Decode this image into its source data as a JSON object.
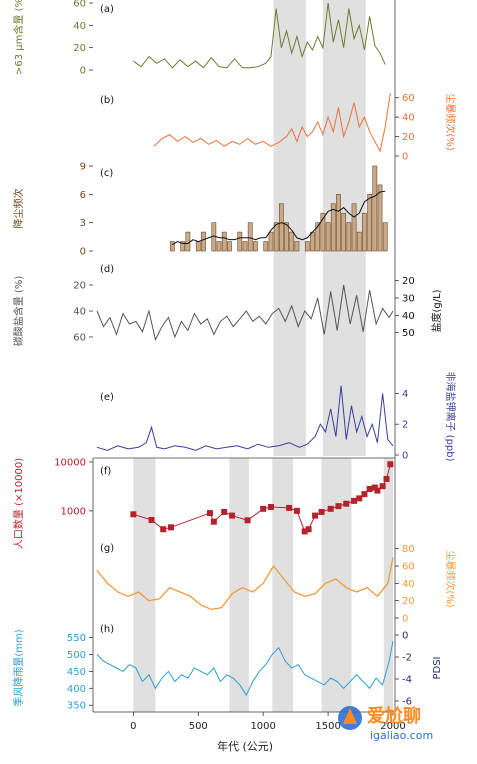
{
  "xaxis": {
    "label": "年代 (公元)",
    "ticks": [
      0,
      500,
      1000,
      1500,
      2000
    ],
    "range": [
      -280,
      2000
    ]
  },
  "watermark": {
    "text": "爱尬聊",
    "url": "igaliao.com"
  },
  "colors": {
    "a": "#6b7d2e",
    "b": "#e8743b",
    "c": "#6b4a1e",
    "d": "#555555",
    "e": "#3a3f9a",
    "f": "#b5222b",
    "g": "#f29a3a",
    "h": "#2a9fd0",
    "pdsi": "#1f2f6e"
  },
  "chart_data": [
    {
      "id": "a",
      "panel_label": "(a)",
      "type": "line",
      "ylabel": ">63 μm含量 (%",
      "ylabel_side": "left",
      "color": "#6b7d2e",
      "ylim": [
        0,
        60
      ],
      "ticks": [
        0,
        20,
        40,
        60
      ],
      "x": [
        0,
        60,
        120,
        180,
        240,
        300,
        360,
        420,
        480,
        540,
        600,
        660,
        720,
        780,
        840,
        900,
        960,
        1020,
        1060,
        1100,
        1140,
        1180,
        1220,
        1260,
        1300,
        1340,
        1380,
        1420,
        1460,
        1500,
        1540,
        1580,
        1620,
        1660,
        1700,
        1740,
        1780,
        1820,
        1860,
        1900,
        1940
      ],
      "y": [
        8,
        3,
        12,
        6,
        10,
        2,
        9,
        3,
        8,
        2,
        11,
        3,
        2,
        10,
        2,
        2,
        3,
        6,
        12,
        55,
        20,
        35,
        15,
        30,
        12,
        25,
        18,
        30,
        20,
        60,
        25,
        45,
        20,
        55,
        28,
        40,
        18,
        48,
        22,
        15,
        5
      ]
    },
    {
      "id": "b",
      "panel_label": "(b)",
      "type": "line",
      "ylabel": "尘暴频次(%)",
      "ylabel_side": "right",
      "color": "#e8743b",
      "ylim": [
        0,
        70
      ],
      "ticks": [
        0,
        20,
        40,
        60
      ],
      "x": [
        160,
        220,
        280,
        340,
        400,
        460,
        520,
        580,
        640,
        700,
        760,
        820,
        880,
        940,
        1000,
        1060,
        1120,
        1180,
        1220,
        1260,
        1300,
        1340,
        1380,
        1420,
        1460,
        1500,
        1540,
        1580,
        1620,
        1660,
        1700,
        1740,
        1780,
        1820,
        1860,
        1900,
        1940,
        1980
      ],
      "y": [
        10,
        18,
        22,
        15,
        20,
        14,
        18,
        12,
        16,
        10,
        15,
        12,
        18,
        12,
        15,
        10,
        14,
        20,
        28,
        15,
        30,
        20,
        25,
        35,
        22,
        40,
        25,
        50,
        20,
        35,
        55,
        30,
        40,
        25,
        15,
        5,
        30,
        65
      ]
    },
    {
      "id": "c",
      "panel_label": "(c)",
      "type": "bar+line",
      "ylabel": "降尘频次",
      "ylabel_side": "left",
      "color": "#6b4a1e",
      "ylim": [
        0,
        9
      ],
      "ticks": [
        0,
        3,
        6,
        9
      ],
      "x": [
        300,
        340,
        380,
        420,
        460,
        500,
        540,
        580,
        620,
        660,
        700,
        740,
        780,
        820,
        860,
        900,
        940,
        980,
        1020,
        1060,
        1100,
        1140,
        1180,
        1220,
        1260,
        1300,
        1340,
        1380,
        1420,
        1460,
        1500,
        1540,
        1580,
        1620,
        1660,
        1700,
        1740,
        1780,
        1820,
        1860,
        1900,
        1940
      ],
      "y": [
        1,
        0,
        1,
        2,
        0,
        1,
        2,
        0,
        3,
        1,
        2,
        1,
        0,
        2,
        1,
        3,
        1,
        0,
        1,
        2,
        3,
        5,
        3,
        2,
        1,
        0,
        1,
        2,
        3,
        4,
        3,
        5,
        6,
        4,
        3,
        5,
        2,
        4,
        6,
        9,
        7,
        3
      ]
    },
    {
      "id": "d",
      "panel_label": "(d)",
      "type": "line",
      "ylabel": "碳酸盐含量 (%)",
      "ylabel_side": "left",
      "color": "#555555",
      "ylim": [
        70,
        10
      ],
      "ticks": [
        20,
        40,
        60
      ],
      "right_axis": {
        "label": "盐度(g/L)",
        "ticks": [
          20,
          30,
          40,
          50
        ],
        "ylim": [
          60,
          15
        ],
        "color": "#111111"
      },
      "x": [
        -280,
        -230,
        -180,
        -130,
        -80,
        -30,
        20,
        70,
        120,
        170,
        220,
        270,
        320,
        370,
        420,
        470,
        520,
        570,
        620,
        670,
        720,
        770,
        820,
        870,
        920,
        970,
        1020,
        1070,
        1120,
        1170,
        1220,
        1270,
        1320,
        1370,
        1420,
        1470,
        1520,
        1570,
        1620,
        1670,
        1720,
        1770,
        1820,
        1870,
        1920,
        1970,
        2000
      ],
      "y": [
        40,
        52,
        45,
        58,
        42,
        50,
        48,
        56,
        40,
        62,
        52,
        45,
        60,
        48,
        55,
        42,
        50,
        46,
        58,
        48,
        44,
        52,
        46,
        40,
        48,
        44,
        50,
        42,
        38,
        48,
        36,
        52,
        40,
        46,
        30,
        58,
        25,
        55,
        20,
        50,
        28,
        56,
        24,
        50,
        38,
        45,
        40
      ]
    },
    {
      "id": "e",
      "panel_label": "(e)",
      "type": "line",
      "ylabel": "非海盐钾离子 (ppb)",
      "ylabel_side": "right",
      "color": "#3a3f9a",
      "ylim": [
        0,
        5
      ],
      "ticks": [
        0,
        2,
        4
      ],
      "x": [
        -280,
        -200,
        -120,
        -40,
        40,
        100,
        140,
        180,
        240,
        320,
        400,
        480,
        560,
        640,
        720,
        800,
        880,
        960,
        1040,
        1120,
        1200,
        1280,
        1340,
        1400,
        1440,
        1480,
        1520,
        1560,
        1600,
        1640,
        1680,
        1720,
        1760,
        1800,
        1840,
        1880,
        1920,
        1960,
        2000
      ],
      "y": [
        0.5,
        0.3,
        0.6,
        0.4,
        0.5,
        0.8,
        1.8,
        0.5,
        0.4,
        0.6,
        0.5,
        0.3,
        0.6,
        0.4,
        0.5,
        0.6,
        0.4,
        0.7,
        0.5,
        0.6,
        0.8,
        0.5,
        0.7,
        1.2,
        2.0,
        1.5,
        3.0,
        1.2,
        4.5,
        1.0,
        3.2,
        1.5,
        2.5,
        1.2,
        2.0,
        0.8,
        4.0,
        1.0,
        0.6
      ]
    },
    {
      "id": "f",
      "panel_label": "(f)",
      "type": "scatter+line",
      "ylabel": "人口数量 (×10000)",
      "ylabel_side": "left",
      "color": "#b5222b",
      "scale": "log",
      "ylim": [
        200,
        10000
      ],
      "ticks": [
        1000,
        10000
      ],
      "x": [
        0,
        140,
        230,
        290,
        590,
        620,
        700,
        760,
        880,
        1000,
        1060,
        1200,
        1260,
        1320,
        1350,
        1400,
        1450,
        1520,
        1580,
        1640,
        1700,
        1740,
        1780,
        1820,
        1860,
        1880,
        1920,
        1950,
        1980
      ],
      "y": [
        850,
        650,
        420,
        460,
        900,
        600,
        950,
        800,
        640,
        1100,
        1200,
        1150,
        1000,
        380,
        420,
        800,
        950,
        1100,
        1250,
        1400,
        1600,
        1800,
        2200,
        2800,
        3000,
        2600,
        3200,
        4500,
        9000
      ]
    },
    {
      "id": "g",
      "panel_label": "(g)",
      "type": "line",
      "ylabel": "尘暴频次(%)",
      "ylabel_side": "right",
      "color": "#f29a3a",
      "ylim": [
        0,
        90
      ],
      "ticks": [
        0,
        20,
        40,
        60,
        80
      ],
      "x": [
        -280,
        -200,
        -120,
        -40,
        40,
        120,
        200,
        280,
        360,
        440,
        520,
        600,
        680,
        760,
        840,
        920,
        1000,
        1080,
        1160,
        1240,
        1320,
        1400,
        1480,
        1560,
        1640,
        1720,
        1800,
        1880,
        1960,
        2000
      ],
      "y": [
        55,
        40,
        30,
        25,
        30,
        20,
        22,
        35,
        30,
        25,
        15,
        10,
        12,
        28,
        35,
        30,
        40,
        60,
        45,
        30,
        25,
        28,
        40,
        45,
        35,
        30,
        35,
        25,
        40,
        70
      ]
    },
    {
      "id": "h",
      "panel_label": "(h)",
      "type": "line",
      "ylabel": "季风降雨量(mm)",
      "ylabel_side": "left",
      "color": "#2a9fd0",
      "ylim": [
        330,
        590
      ],
      "ticks": [
        350,
        400,
        450,
        500,
        550
      ],
      "right_axis": {
        "label": "PDSI",
        "ticks": [
          -6,
          -4,
          -2,
          0
        ],
        "ylim": [
          -7,
          1
        ],
        "color": "#1f2f6e"
      },
      "x": [
        -280,
        -230,
        -180,
        -130,
        -80,
        -30,
        20,
        70,
        120,
        170,
        220,
        270,
        320,
        370,
        420,
        470,
        520,
        570,
        620,
        670,
        720,
        770,
        820,
        870,
        920,
        970,
        1020,
        1070,
        1120,
        1170,
        1220,
        1270,
        1320,
        1370,
        1420,
        1470,
        1520,
        1570,
        1620,
        1670,
        1720,
        1770,
        1820,
        1870,
        1920,
        1970,
        2000
      ],
      "y": [
        500,
        480,
        470,
        460,
        450,
        470,
        460,
        420,
        440,
        400,
        430,
        450,
        420,
        440,
        430,
        460,
        450,
        440,
        460,
        420,
        440,
        430,
        410,
        380,
        420,
        450,
        470,
        500,
        520,
        480,
        460,
        470,
        440,
        430,
        420,
        410,
        430,
        420,
        400,
        420,
        440,
        420,
        400,
        430,
        410,
        480,
        540
      ]
    }
  ]
}
